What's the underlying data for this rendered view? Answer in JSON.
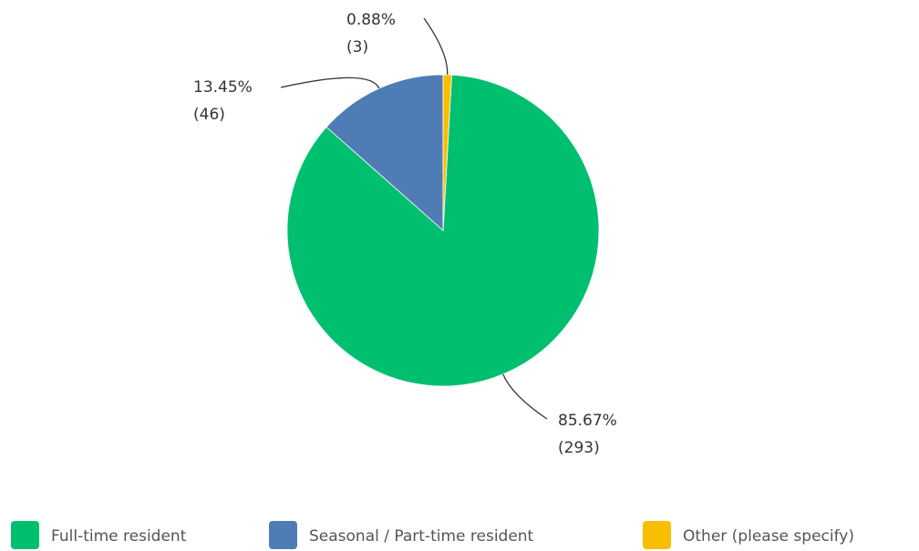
{
  "chart_data": {
    "type": "pie",
    "categories": [
      "Full-time resident",
      "Seasonal / Part-time resident",
      "Other (please specify)"
    ],
    "values": [
      85.67,
      13.45,
      0.88
    ],
    "value_labels": [
      "85.67%",
      "13.45%",
      "0.88%"
    ],
    "count_labels": [
      "(293)",
      "(46)",
      "(3)"
    ],
    "colors": [
      "#00bf6f",
      "#507cb6",
      "#f9be00"
    ],
    "legend": "bottom"
  }
}
